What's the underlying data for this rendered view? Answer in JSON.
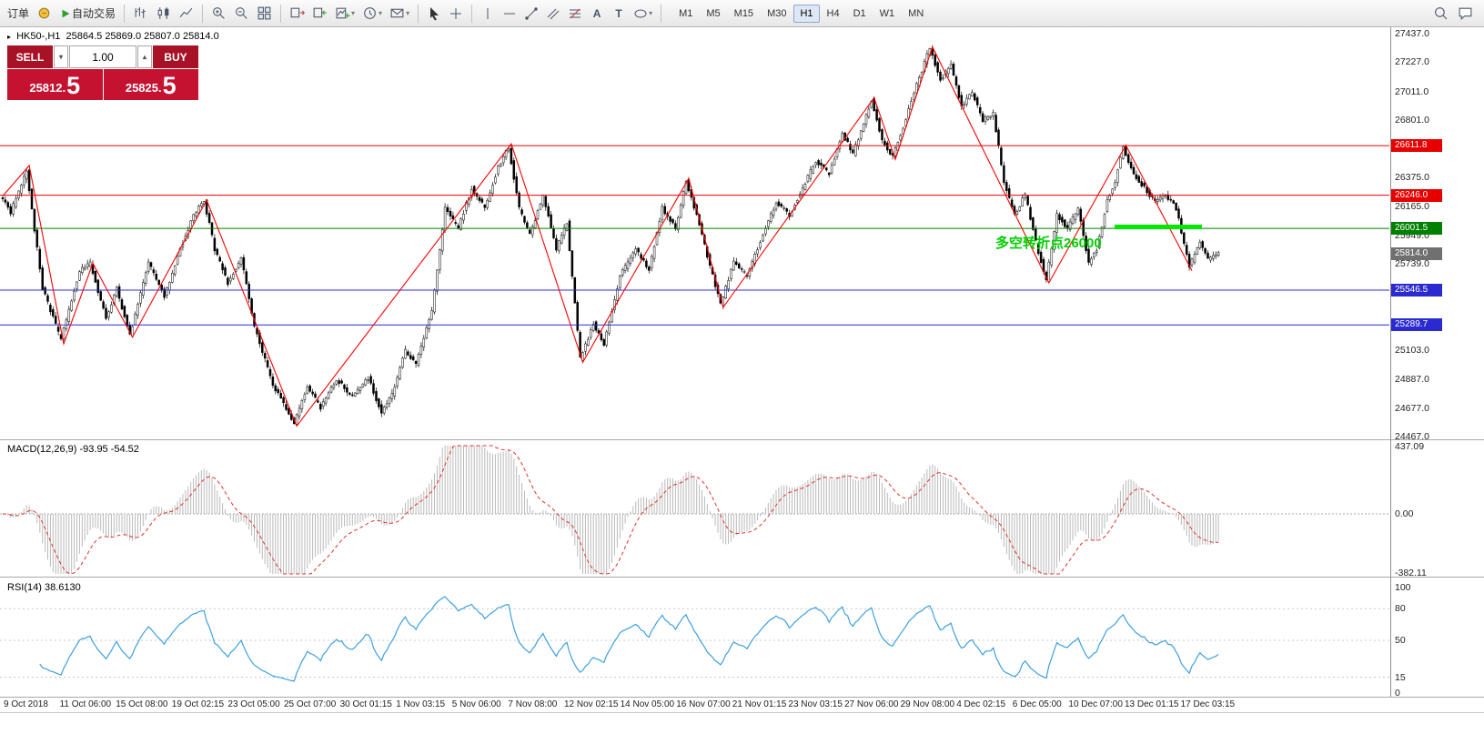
{
  "toolbar": {
    "order_label": "订单",
    "autotrade_label": "自动交易",
    "timeframes": [
      "M1",
      "M5",
      "M15",
      "M30",
      "H1",
      "H4",
      "D1",
      "W1",
      "MN"
    ],
    "active_timeframe": "H1"
  },
  "trade_panel": {
    "sell_label": "SELL",
    "buy_label": "BUY",
    "volume": "1.00",
    "sell_price_main": "25812.",
    "sell_price_big": "5",
    "buy_price_main": "25825.",
    "buy_price_big": "5"
  },
  "chart": {
    "symbol_label": "HK50-,H1",
    "ohlc": "25864.5 25869.0 25807.0 25814.0",
    "annotation": "多空转折点26000",
    "annotation_color": "#00cf00",
    "highlight_bar_color": "#00e800"
  },
  "axis": {
    "min": 24467.0,
    "max": 27437.0,
    "ticks": [
      "27437.0",
      "27227.0",
      "27011.0",
      "26801.0",
      "26585.0",
      "26375.0",
      "26165.0",
      "25949.0",
      "25739.0",
      "25523.0",
      "25313.0",
      "25103.0",
      "24887.0",
      "24677.0",
      "24467.0"
    ]
  },
  "levels": [
    {
      "label": "26611.8",
      "price": 26611.8,
      "color": "#e60000",
      "line": true
    },
    {
      "label": "26246.0",
      "price": 26246.0,
      "color": "#e60000",
      "line": true
    },
    {
      "label": "26001.5",
      "price": 26001.5,
      "color": "#008000",
      "line": true
    },
    {
      "label": "25814.0",
      "price": 25814.0,
      "color": "#707070",
      "line": false
    },
    {
      "label": "25546.5",
      "price": 25546.5,
      "color": "#2a2ad0",
      "line": true
    },
    {
      "label": "25289.7",
      "price": 25289.7,
      "color": "#2a2ad0",
      "line": true
    }
  ],
  "chart_data": {
    "type": "candlestick",
    "symbol": "HK50-,H1",
    "current_ohlc": {
      "open": 25864.5,
      "high": 25869.0,
      "low": 25807.0,
      "close": 25814.0
    },
    "candle_count": 460,
    "price_path": [
      [
        0,
        26240
      ],
      [
        4,
        26120
      ],
      [
        10,
        26430
      ],
      [
        16,
        25560
      ],
      [
        23,
        25180
      ],
      [
        30,
        25690
      ],
      [
        34,
        25745
      ],
      [
        40,
        25340
      ],
      [
        44,
        25560
      ],
      [
        49,
        25210
      ],
      [
        56,
        25750
      ],
      [
        62,
        25500
      ],
      [
        68,
        25850
      ],
      [
        73,
        26100
      ],
      [
        77,
        26210
      ],
      [
        81,
        25850
      ],
      [
        86,
        25600
      ],
      [
        91,
        25780
      ],
      [
        96,
        25280
      ],
      [
        103,
        24850
      ],
      [
        111,
        24560
      ],
      [
        116,
        24840
      ],
      [
        121,
        24680
      ],
      [
        127,
        24890
      ],
      [
        133,
        24760
      ],
      [
        139,
        24900
      ],
      [
        144,
        24640
      ],
      [
        148,
        24780
      ],
      [
        153,
        25100
      ],
      [
        157,
        25000
      ],
      [
        163,
        25400
      ],
      [
        168,
        26150
      ],
      [
        173,
        26000
      ],
      [
        178,
        26300
      ],
      [
        183,
        26150
      ],
      [
        188,
        26450
      ],
      [
        192,
        26600
      ],
      [
        196,
        26150
      ],
      [
        200,
        25950
      ],
      [
        205,
        26250
      ],
      [
        210,
        25850
      ],
      [
        214,
        26050
      ],
      [
        219,
        25040
      ],
      [
        224,
        25300
      ],
      [
        228,
        25150
      ],
      [
        234,
        25650
      ],
      [
        240,
        25850
      ],
      [
        245,
        25700
      ],
      [
        250,
        26150
      ],
      [
        255,
        26000
      ],
      [
        259,
        26350
      ],
      [
        263,
        26100
      ],
      [
        267,
        25800
      ],
      [
        272,
        25440
      ],
      [
        277,
        25750
      ],
      [
        282,
        25650
      ],
      [
        287,
        25900
      ],
      [
        293,
        26200
      ],
      [
        298,
        26100
      ],
      [
        303,
        26300
      ],
      [
        308,
        26500
      ],
      [
        313,
        26400
      ],
      [
        318,
        26700
      ],
      [
        322,
        26550
      ],
      [
        329,
        26950
      ],
      [
        333,
        26650
      ],
      [
        337,
        26530
      ],
      [
        341,
        26750
      ],
      [
        345,
        27000
      ],
      [
        351,
        27330
      ],
      [
        355,
        27100
      ],
      [
        359,
        27200
      ],
      [
        363,
        26900
      ],
      [
        367,
        27000
      ],
      [
        371,
        26800
      ],
      [
        375,
        26850
      ],
      [
        379,
        26350
      ],
      [
        383,
        26100
      ],
      [
        387,
        26250
      ],
      [
        391,
        25900
      ],
      [
        395,
        25620
      ],
      [
        399,
        26100
      ],
      [
        403,
        26000
      ],
      [
        407,
        26150
      ],
      [
        411,
        25750
      ],
      [
        414,
        25850
      ],
      [
        418,
        26200
      ],
      [
        421,
        26350
      ],
      [
        424,
        26600
      ],
      [
        428,
        26400
      ],
      [
        432,
        26300
      ],
      [
        436,
        26200
      ],
      [
        440,
        26250
      ],
      [
        444,
        26150
      ],
      [
        449,
        25720
      ],
      [
        453,
        25900
      ],
      [
        456,
        25780
      ],
      [
        459,
        25814
      ]
    ],
    "zigzag": [
      [
        0,
        26240
      ],
      [
        10,
        26465
      ],
      [
        23,
        25150
      ],
      [
        34,
        25745
      ],
      [
        49,
        25200
      ],
      [
        77,
        26210
      ],
      [
        111,
        24545
      ],
      [
        192,
        26625
      ],
      [
        219,
        25015
      ],
      [
        259,
        26370
      ],
      [
        272,
        25420
      ],
      [
        329,
        26965
      ],
      [
        337,
        26510
      ],
      [
        351,
        27340
      ],
      [
        395,
        25600
      ],
      [
        424,
        26615
      ],
      [
        449,
        25690
      ]
    ],
    "macd": {
      "name": "MACD(12,26,9)",
      "values": "-93.95 -54.52",
      "axis": [
        "437.09",
        "0.00",
        "-382.11"
      ],
      "axis_max": 437.09,
      "axis_min": -382.11
    },
    "rsi": {
      "name": "RSI(14)",
      "value": "38.6130",
      "levels": [
        100,
        80,
        50,
        15,
        0
      ]
    }
  },
  "time_axis": [
    "9 Oct 2018",
    "11 Oct 06:00",
    "15 Oct 08:00",
    "19 Oct 02:15",
    "23 Oct 05:00",
    "25 Oct 07:00",
    "30 Oct 01:15",
    "1 Nov 03:15",
    "5 Nov 06:00",
    "7 Nov 08:00",
    "12 Nov 02:15",
    "14 Nov 05:00",
    "16 Nov 07:00",
    "21 Nov 01:15",
    "23 Nov 03:15",
    "27 Nov 06:00",
    "29 Nov 08:00",
    "4 Dec 02:15",
    "6 Dec 05:00",
    "10 Dec 07:00",
    "13 Dec 01:15",
    "17 Dec 03:15"
  ]
}
